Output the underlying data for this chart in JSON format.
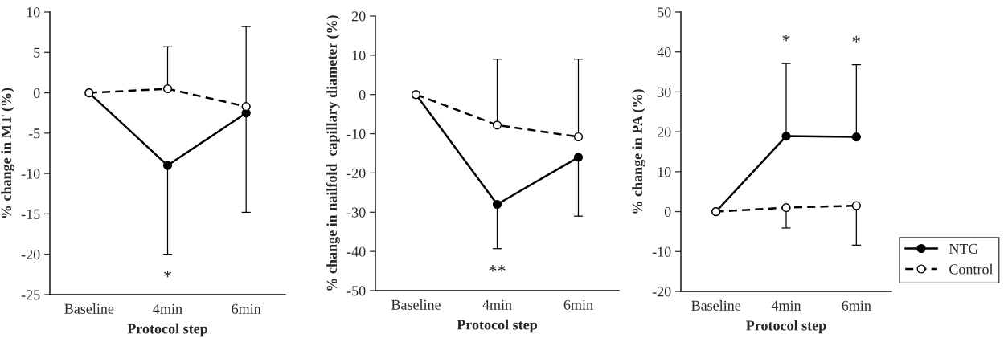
{
  "chart_data": [
    {
      "type": "line",
      "categories": [
        "Baseline",
        "4min",
        "6min"
      ],
      "xlabel": "Protocol step",
      "ylabel": "% change in MT (%)",
      "ylim": [
        -25,
        10
      ],
      "yticks": [
        -25,
        -20,
        -15,
        -10,
        -5,
        0,
        5,
        10
      ],
      "marker": "circle",
      "grid": false,
      "legend": "right",
      "series": [
        {
          "name": "NTG",
          "color": "#000000",
          "line_style": "solid",
          "values": [
            0,
            -9,
            -2.5
          ],
          "errors": [
            null,
            [
              -20,
              -9
            ],
            [
              -14.8,
              -2.5
            ]
          ]
        },
        {
          "name": "Control",
          "color": "#ffffff",
          "line_style": "dashed",
          "values": [
            0,
            0.5,
            -1.7
          ],
          "errors": [
            null,
            [
              0.5,
              5.7
            ],
            [
              -1.7,
              8.2
            ]
          ]
        }
      ],
      "annotations": [
        "*"
      ]
    },
    {
      "type": "line",
      "categories": [
        "Baseline",
        "4min",
        "6min"
      ],
      "xlabel": "Protocol step",
      "ylabel": "% change in nailfold  capillary diameter (%)",
      "ylim": [
        -50,
        20
      ],
      "yticks": [
        -50,
        -40,
        -30,
        -20,
        -10,
        0,
        10,
        20
      ],
      "marker": "circle",
      "grid": false,
      "series": [
        {
          "color": "#000000",
          "line_style": "solid",
          "values": [
            0,
            -28,
            -16
          ],
          "errors": [
            null,
            [
              -39.3,
              -28
            ],
            [
              -31,
              -16
            ]
          ]
        },
        {
          "color": "#ffffff",
          "line_style": "dashed",
          "values": [
            0,
            -7.8,
            -10.8
          ],
          "errors": [
            null,
            [
              -7.8,
              9
            ],
            [
              -10.8,
              9
            ]
          ]
        }
      ],
      "annotations": [
        "**"
      ]
    },
    {
      "type": "line",
      "categories": [
        "Baseline",
        "4min",
        "6min"
      ],
      "xlabel": "Protocol step",
      "ylabel": "% change in PA (%)",
      "ylim": [
        -20,
        50
      ],
      "yticks": [
        -20,
        -10,
        0,
        10,
        20,
        30,
        40,
        50
      ],
      "marker": "circle",
      "grid": false,
      "series": [
        {
          "color": "#000000",
          "line_style": "solid",
          "values": [
            0,
            18.9,
            18.7
          ],
          "errors": [
            null,
            [
              18.9,
              37.1
            ],
            [
              18.7,
              36.8
            ]
          ]
        },
        {
          "color": "#ffffff",
          "line_style": "dashed",
          "values": [
            0,
            1,
            1.5
          ],
          "errors": [
            null,
            [
              -4.1,
              1
            ],
            [
              -8.4,
              1.5
            ]
          ]
        }
      ],
      "annotations": [
        "*",
        "*"
      ]
    }
  ]
}
